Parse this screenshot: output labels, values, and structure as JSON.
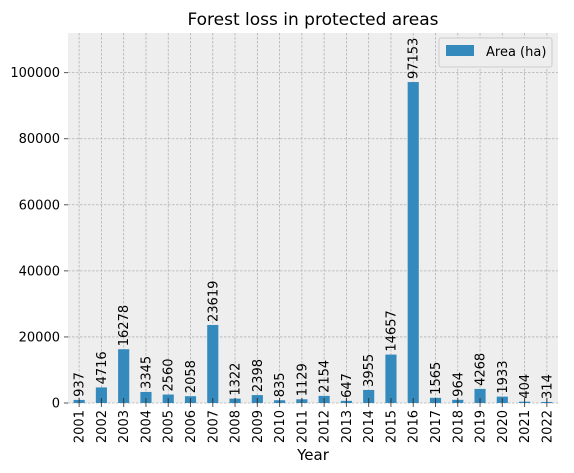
{
  "chart_data": {
    "type": "bar",
    "title": "Forest loss in protected areas",
    "xlabel": "Year",
    "ylabel": "",
    "categories": [
      "2001",
      "2002",
      "2003",
      "2004",
      "2005",
      "2006",
      "2007",
      "2008",
      "2009",
      "2010",
      "2011",
      "2012",
      "2013",
      "2014",
      "2015",
      "2016",
      "2017",
      "2018",
      "2019",
      "2020",
      "2021",
      "2022"
    ],
    "series": [
      {
        "name": "Area (ha)",
        "color": "#348abd",
        "values": [
          937,
          4716,
          16278,
          3345,
          2560,
          2058,
          23619,
          1322,
          2398,
          835,
          1129,
          2154,
          647,
          3955,
          14657,
          97153,
          1565,
          964,
          4268,
          1933,
          404,
          314
        ]
      }
    ],
    "ylim": [
      0,
      112000
    ],
    "yticks": [
      0,
      20000,
      40000,
      60000,
      80000,
      100000
    ],
    "grid": true,
    "legend_position": "top-right",
    "background_color": "#eeeeee",
    "grid_color": "#b2b2b2"
  }
}
